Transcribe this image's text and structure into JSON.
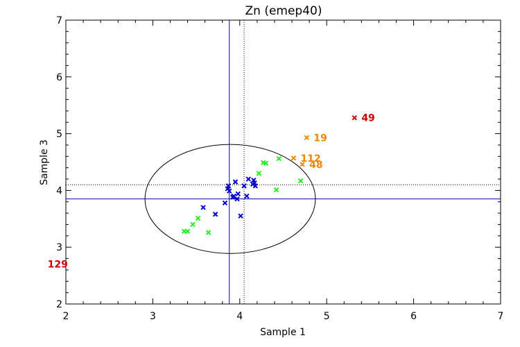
{
  "chart_data": {
    "type": "scatter",
    "title": "Zn (emep40)",
    "xlabel": "Sample 1",
    "ylabel": "Sample 3",
    "xlim": [
      2,
      7
    ],
    "ylim": [
      2,
      7
    ],
    "xticks": [
      2,
      3,
      4,
      5,
      6,
      7
    ],
    "yticks": [
      2,
      3,
      4,
      5,
      6,
      7
    ],
    "colors": {
      "blue": "#0000cc",
      "green": "#22ee22",
      "orange": "#ee8800",
      "red": "#cc0000",
      "ellipse": "#000000",
      "mean_line": "#0000cc",
      "median_line": "#000000"
    },
    "mean_lines": {
      "x": 3.88,
      "y": 3.85
    },
    "median_lines": {
      "x": 4.05,
      "y": 4.1
    },
    "ellipse": {
      "cx": 3.89,
      "cy": 3.85,
      "rx": 0.98,
      "ry": 0.96
    },
    "series": [
      {
        "name": "blue",
        "color": "#0000cc",
        "points": [
          [
            3.58,
            3.7
          ],
          [
            3.72,
            3.58
          ],
          [
            3.83,
            3.78
          ],
          [
            3.86,
            4.03
          ],
          [
            3.87,
            4.08
          ],
          [
            3.88,
            3.99
          ],
          [
            3.92,
            3.88
          ],
          [
            3.93,
            3.9
          ],
          [
            3.95,
            4.15
          ],
          [
            3.97,
            3.85
          ],
          [
            3.98,
            3.94
          ],
          [
            4.01,
            3.55
          ],
          [
            4.05,
            4.08
          ],
          [
            4.08,
            3.9
          ],
          [
            4.1,
            4.2
          ],
          [
            4.15,
            4.11
          ],
          [
            4.16,
            4.18
          ],
          [
            4.17,
            4.13
          ],
          [
            4.18,
            4.08
          ]
        ]
      },
      {
        "name": "green",
        "color": "#22ee22",
        "points": [
          [
            3.36,
            3.28
          ],
          [
            3.4,
            3.28
          ],
          [
            3.46,
            3.4
          ],
          [
            3.52,
            3.51
          ],
          [
            3.64,
            3.26
          ],
          [
            4.22,
            4.3
          ],
          [
            4.27,
            4.49
          ],
          [
            4.3,
            4.48
          ],
          [
            4.42,
            4.01
          ],
          [
            4.45,
            4.56
          ],
          [
            4.7,
            4.17
          ]
        ]
      },
      {
        "name": "orange",
        "color": "#ee8800",
        "points": [
          [
            4.62,
            4.57
          ],
          [
            4.72,
            4.46
          ],
          [
            4.77,
            4.93
          ]
        ]
      },
      {
        "name": "red",
        "color": "#cc0000",
        "points": [
          [
            5.32,
            5.28
          ]
        ]
      }
    ],
    "annotations": [
      {
        "text": "49",
        "x": 5.32,
        "y": 5.28,
        "color": "#cc0000"
      },
      {
        "text": "19",
        "x": 4.77,
        "y": 4.93,
        "color": "#ee8800"
      },
      {
        "text": "112",
        "x": 4.62,
        "y": 4.57,
        "color": "#ee8800"
      },
      {
        "text": "48",
        "x": 4.72,
        "y": 4.46,
        "color": "#ee8800"
      },
      {
        "text": "129",
        "x": 1.71,
        "y": 2.7,
        "color": "#cc0000"
      }
    ]
  }
}
